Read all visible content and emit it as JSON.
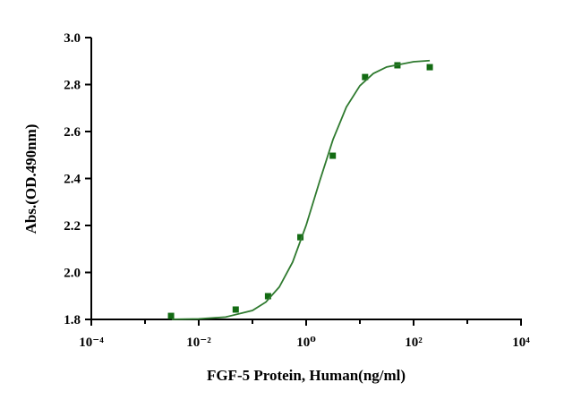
{
  "chart_data": {
    "type": "scatter",
    "x_label": "FGF-5 Protein, Human(ng/ml)",
    "y_label": "Abs.(OD.490nm)",
    "xscale": "log",
    "xlim": [
      0.0001,
      10000
    ],
    "xticks": [
      {
        "value": 0.0001,
        "label": "10⁻⁴"
      },
      {
        "value": 0.01,
        "label": "10⁻²"
      },
      {
        "value": 1,
        "label": "10⁰"
      },
      {
        "value": 100,
        "label": "10²"
      },
      {
        "value": 10000,
        "label": "10⁴"
      }
    ],
    "xminorticks": [
      0.001,
      0.1,
      10,
      1000
    ],
    "ylim": [
      1.8,
      3.0
    ],
    "yticks": [
      1.8,
      {
        "value": 2,
        "label": "2.0"
      },
      2.2,
      2.4,
      2.6,
      2.8,
      {
        "value": 3,
        "label": "3.0"
      }
    ],
    "series": [
      {
        "style": "markers",
        "color": "#136b13",
        "x": [
          0.00305,
          0.0488,
          0.195,
          0.781,
          3.125,
          12.5,
          50,
          200
        ],
        "values": [
          1.815,
          1.842,
          1.899,
          2.15,
          2.497,
          2.832,
          2.882,
          2.874
        ]
      },
      {
        "style": "line",
        "color": "#2f7a2f",
        "x": [
          0.00316,
          0.01,
          0.0316,
          0.1,
          0.178,
          0.316,
          0.56,
          1,
          1.78,
          3.16,
          5.6,
          10,
          17.8,
          31.6,
          100,
          200
        ],
        "values": [
          1.8006,
          1.8025,
          1.81,
          1.838,
          1.874,
          1.938,
          2.044,
          2.201,
          2.388,
          2.566,
          2.704,
          2.795,
          2.847,
          2.875,
          2.897,
          2.902
        ]
      }
    ]
  }
}
